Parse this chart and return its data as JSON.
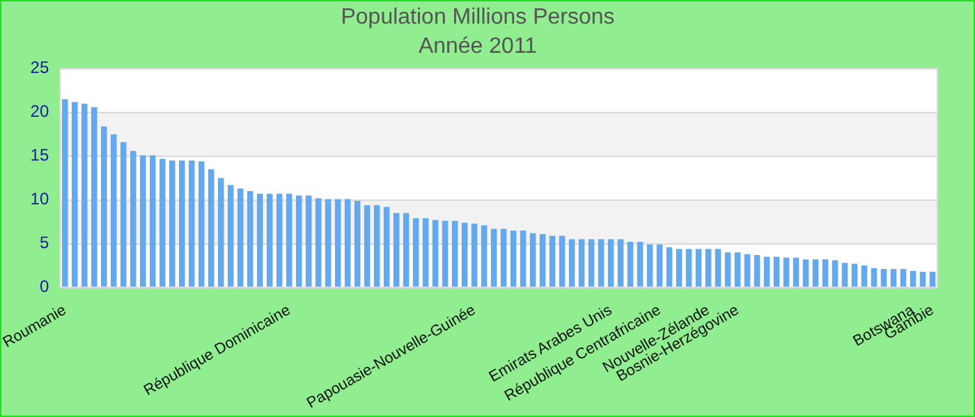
{
  "chart_data": {
    "type": "bar",
    "title": "Population Millions Persons",
    "subtitle": "Année 2011",
    "categories": [
      "Roumanie",
      null,
      null,
      null,
      null,
      null,
      null,
      null,
      null,
      null,
      null,
      null,
      null,
      null,
      null,
      null,
      null,
      null,
      null,
      null,
      null,
      null,
      null,
      "République Dominicaine",
      null,
      null,
      null,
      null,
      null,
      null,
      null,
      null,
      null,
      null,
      null,
      null,
      null,
      null,
      null,
      null,
      null,
      null,
      "Papouasie-Nouvelle-Guinée",
      null,
      null,
      null,
      null,
      null,
      null,
      null,
      null,
      null,
      null,
      null,
      null,
      null,
      "Emirats Arabes Unis",
      null,
      null,
      null,
      null,
      "République Centrafricaine",
      null,
      null,
      null,
      null,
      "Nouvelle-Zélande",
      null,
      null,
      "Bosnie-Herzégovine",
      null,
      null,
      null,
      null,
      null,
      null,
      null,
      null,
      null,
      null,
      null,
      null,
      null,
      null,
      null,
      null,
      null,
      "Botswana",
      null,
      "Gambie"
    ],
    "values": [
      21.5,
      21.2,
      21.0,
      20.6,
      18.4,
      17.5,
      16.6,
      15.6,
      15.1,
      15.1,
      14.7,
      14.5,
      14.5,
      14.5,
      14.4,
      13.5,
      12.5,
      11.7,
      11.3,
      11.0,
      10.7,
      10.7,
      10.7,
      10.7,
      10.5,
      10.5,
      10.2,
      10.1,
      10.1,
      10.1,
      9.9,
      9.4,
      9.4,
      9.2,
      8.5,
      8.5,
      7.9,
      7.9,
      7.7,
      7.6,
      7.6,
      7.4,
      7.3,
      7.1,
      6.7,
      6.7,
      6.5,
      6.5,
      6.2,
      6.1,
      5.9,
      5.9,
      5.5,
      5.5,
      5.5,
      5.5,
      5.5,
      5.5,
      5.2,
      5.2,
      4.9,
      4.9,
      4.6,
      4.4,
      4.4,
      4.4,
      4.4,
      4.4,
      4.0,
      4.0,
      3.8,
      3.7,
      3.5,
      3.5,
      3.4,
      3.4,
      3.2,
      3.2,
      3.2,
      3.1,
      2.8,
      2.7,
      2.5,
      2.2,
      2.1,
      2.1,
      2.1,
      1.9,
      1.8,
      1.8
    ],
    "color": "#63a9f0",
    "ylim": [
      0,
      25
    ],
    "yticks": [
      0,
      5,
      10,
      15,
      20,
      25
    ],
    "grid": true,
    "legend": false
  }
}
